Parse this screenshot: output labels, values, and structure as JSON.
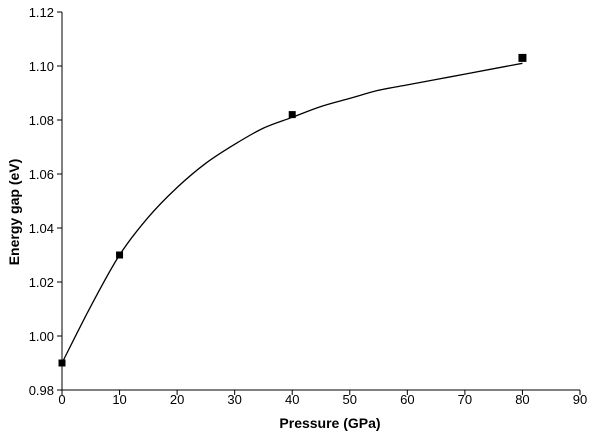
{
  "chart_data": {
    "type": "line",
    "title": "",
    "xlabel": "Pressure (GPa)",
    "ylabel": "Energy gap (eV)",
    "xlim": [
      0,
      90
    ],
    "ylim": [
      0.98,
      1.12
    ],
    "x_ticks": [
      "0",
      "10",
      "20",
      "30",
      "40",
      "50",
      "60",
      "70",
      "80",
      "90"
    ],
    "y_ticks": [
      "0.98",
      "1.00",
      "1.02",
      "1.04",
      "1.06",
      "1.08",
      "1.10",
      "1.12"
    ],
    "grid": false,
    "legend": "none",
    "series": [
      {
        "kind": "fitted-curve",
        "color": "#000000",
        "x": [
          0,
          5,
          10,
          15,
          20,
          25,
          30,
          35,
          40,
          45,
          50,
          55,
          60,
          65,
          70,
          75,
          80
        ],
        "y": [
          0.99,
          1.011,
          1.03,
          1.044,
          1.055,
          1.064,
          1.071,
          1.077,
          1.081,
          1.085,
          1.088,
          1.091,
          1.093,
          1.095,
          1.097,
          1.099,
          1.101
        ]
      },
      {
        "kind": "markers",
        "marker": "square",
        "color": "#000000",
        "x": [
          0,
          10,
          40,
          80
        ],
        "y": [
          0.99,
          1.03,
          1.082,
          1.103
        ]
      }
    ]
  }
}
